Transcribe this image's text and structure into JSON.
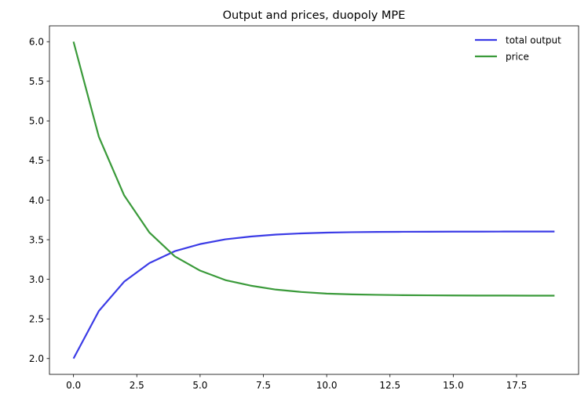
{
  "chart_data": {
    "type": "line",
    "title": "Output and prices, duopoly MPE",
    "xlabel": "",
    "ylabel": "",
    "xlim": [
      -0.95,
      19.95
    ],
    "ylim": [
      1.8,
      6.2
    ],
    "xticks": [
      0.0,
      2.5,
      5.0,
      7.5,
      10.0,
      12.5,
      15.0,
      17.5
    ],
    "xtick_labels": [
      "0.0",
      "2.5",
      "5.0",
      "7.5",
      "10.0",
      "12.5",
      "15.0",
      "17.5"
    ],
    "yticks": [
      2.0,
      2.5,
      3.0,
      3.5,
      4.0,
      4.5,
      5.0,
      5.5,
      6.0
    ],
    "ytick_labels": [
      "2.0",
      "2.5",
      "3.0",
      "3.5",
      "4.0",
      "4.5",
      "5.0",
      "5.5",
      "6.0"
    ],
    "grid": false,
    "legend_position": "top-right",
    "x": [
      0,
      1,
      2,
      3,
      4,
      5,
      6,
      7,
      8,
      9,
      10,
      11,
      12,
      13,
      14,
      15,
      16,
      17,
      18,
      19
    ],
    "series": [
      {
        "name": "total output",
        "color": "#3b3be6",
        "values": [
          2.0,
          2.6,
          2.97,
          3.205,
          3.355,
          3.445,
          3.505,
          3.54,
          3.565,
          3.58,
          3.59,
          3.595,
          3.598,
          3.6,
          3.601,
          3.602,
          3.602,
          3.603,
          3.603,
          3.603
        ]
      },
      {
        "name": "price",
        "color": "#3a9a3a",
        "values": [
          6.0,
          4.8,
          4.06,
          3.59,
          3.29,
          3.11,
          2.99,
          2.92,
          2.87,
          2.84,
          2.82,
          2.81,
          2.804,
          2.8,
          2.798,
          2.796,
          2.795,
          2.795,
          2.794,
          2.794
        ]
      }
    ]
  }
}
